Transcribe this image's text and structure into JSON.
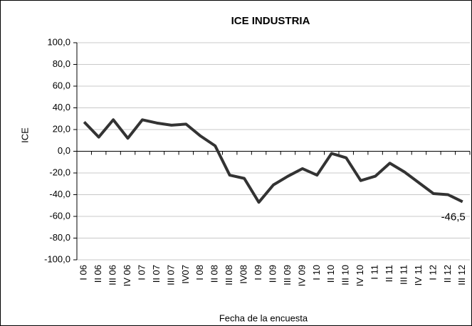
{
  "chart_data": {
    "type": "line",
    "title": "ICE INDUSTRIA",
    "x_label": "Fecha de la encuesta",
    "y_label": "ICE",
    "categories": [
      "I 06",
      "II 06",
      "III 06",
      "IV 06",
      "I 07",
      "II 07",
      "III 07",
      "IV07",
      "I 08",
      "II 08",
      "III 08",
      "IV08",
      "I 09",
      "II 09",
      "III 09",
      "IV 09",
      "I 10",
      "II 10",
      "III 10",
      "IV 10",
      "I 11",
      "II 11",
      "III 11",
      "IV 11",
      "I 12",
      "II 12",
      "III 12"
    ],
    "series": [
      {
        "name": "ICE",
        "color": "#333333",
        "values": [
          27,
          13,
          29,
          12,
          29,
          26,
          24,
          25,
          14,
          5,
          -22,
          -25,
          -47,
          -31,
          -23,
          -16,
          -22,
          -2,
          -6,
          -27,
          -23,
          -11,
          -19,
          -29,
          -39,
          -40,
          -46.5
        ]
      }
    ],
    "value_labels": [
      null,
      null,
      null,
      null,
      null,
      null,
      null,
      null,
      null,
      null,
      null,
      null,
      null,
      null,
      null,
      null,
      null,
      null,
      null,
      null,
      null,
      null,
      null,
      null,
      null,
      null,
      "-46,5"
    ],
    "ylim": [
      -100,
      100
    ],
    "yticks": [
      {
        "value": -100,
        "label": "-100,0"
      },
      {
        "value": -80,
        "label": "-80,0"
      },
      {
        "value": -60,
        "label": "-60,0"
      },
      {
        "value": -40,
        "label": "-40,0"
      },
      {
        "value": -20,
        "label": "-20,0"
      },
      {
        "value": 0,
        "label": "0,0"
      },
      {
        "value": 20,
        "label": "20,0"
      },
      {
        "value": 40,
        "label": "40,0"
      },
      {
        "value": 60,
        "label": "60,0"
      },
      {
        "value": 80,
        "label": "80,0"
      },
      {
        "value": 100,
        "label": "100,0"
      }
    ],
    "grid": true
  }
}
